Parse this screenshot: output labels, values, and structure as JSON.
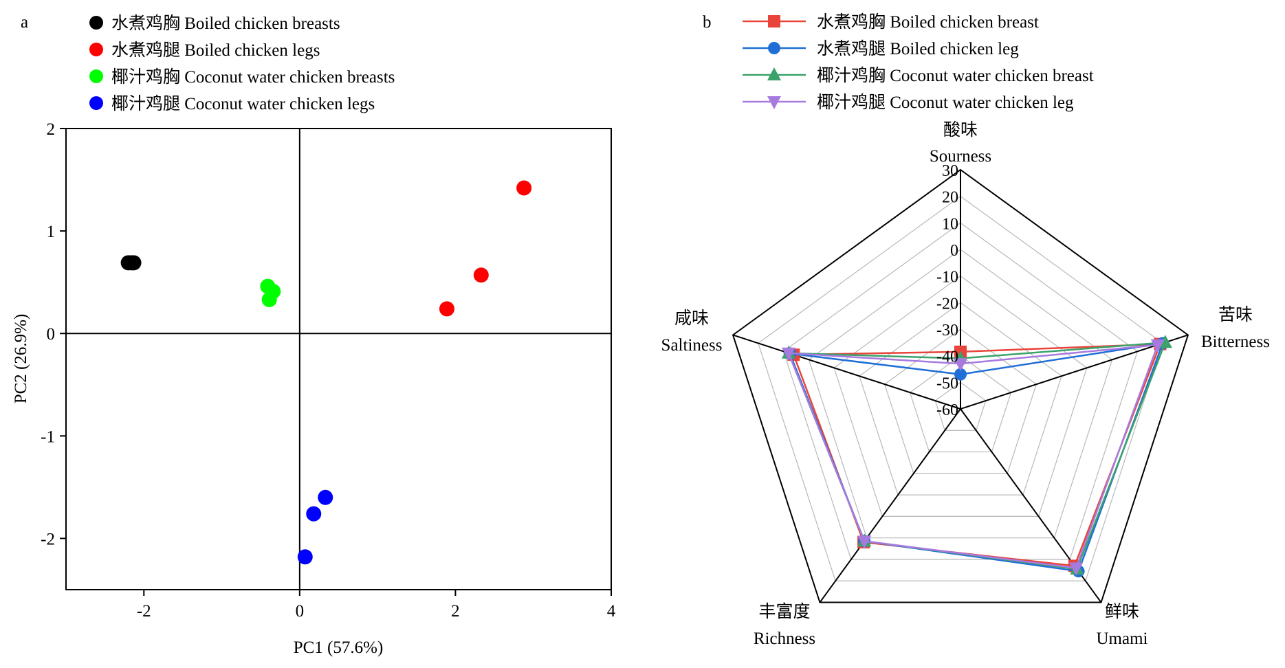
{
  "chart_data": [
    {
      "panel_label": "a",
      "type": "scatter",
      "xlabel": "PC1 (57.6%)",
      "ylabel": "PC2 (26.9%)",
      "xlim": [
        -3,
        4
      ],
      "ylim": [
        -2.5,
        2
      ],
      "xticks": [
        -2,
        0,
        2,
        4
      ],
      "yticks": [
        -2,
        -1,
        0,
        1,
        2
      ],
      "xtick_labels": [
        "-2",
        "0",
        "2",
        "4"
      ],
      "ytick_labels": [
        "-2",
        "-1",
        "0",
        "1",
        "2"
      ],
      "legend_position": "top",
      "series": [
        {
          "name": "水煮鸡胸 Boiled chicken breasts",
          "color": "#000000",
          "points": [
            [
              -2.2,
              0.69
            ],
            [
              -2.16,
              0.69
            ],
            [
              -2.13,
              0.69
            ]
          ]
        },
        {
          "name": "水煮鸡腿 Boiled chicken legs",
          "color": "#ff0000",
          "points": [
            [
              2.88,
              1.42
            ],
            [
              2.33,
              0.57
            ],
            [
              1.89,
              0.24
            ]
          ]
        },
        {
          "name": "椰汁鸡胸 Coconut water chicken breasts",
          "color": "#00ff00",
          "points": [
            [
              -0.41,
              0.46
            ],
            [
              -0.34,
              0.41
            ],
            [
              -0.39,
              0.33
            ]
          ]
        },
        {
          "name": "椰汁鸡腿 Coconut water chicken legs",
          "color": "#0000ff",
          "points": [
            [
              0.33,
              -1.6
            ],
            [
              0.18,
              -1.76
            ],
            [
              0.07,
              -2.18
            ]
          ]
        }
      ]
    },
    {
      "panel_label": "b",
      "type": "radar",
      "axes": [
        {
          "zh": "酸味",
          "en": "Sourness"
        },
        {
          "zh": "苦味",
          "en": "Bitterness"
        },
        {
          "zh": "鲜味",
          "en": "Umami"
        },
        {
          "zh": "丰富度",
          "en": "Richness"
        },
        {
          "zh": "咸味",
          "en": "Saltiness"
        }
      ],
      "rlim": [
        -60,
        30
      ],
      "rticks": [
        -60,
        -50,
        -40,
        -30,
        -20,
        -10,
        0,
        10,
        20,
        30
      ],
      "rtick_labels": [
        "-60",
        "-50",
        "-40",
        "-30",
        "-20",
        "-10",
        "0",
        "10",
        "20",
        "30"
      ],
      "legend_position": "top",
      "series": [
        {
          "name": "水煮鸡胸 Boiled chicken breast",
          "color": "#e8443a",
          "marker": "square",
          "values": [
            -38.5,
            19,
            13,
            2,
            6
          ]
        },
        {
          "name": "水煮鸡腿 Boiled chicken leg",
          "color": "#1f6fd6",
          "marker": "circle",
          "values": [
            -47,
            20,
            15.5,
            1.5,
            7.5
          ]
        },
        {
          "name": "椰汁鸡胸 Coconut water chicken breast",
          "color": "#3aa26a",
          "marker": "triangle-up",
          "values": [
            -41,
            21,
            14.5,
            1.5,
            8
          ]
        },
        {
          "name": "椰汁鸡腿 Coconut water chicken leg",
          "color": "#a77ae0",
          "marker": "triangle-down",
          "values": [
            -43,
            18,
            14,
            1.5,
            8
          ]
        }
      ]
    }
  ]
}
